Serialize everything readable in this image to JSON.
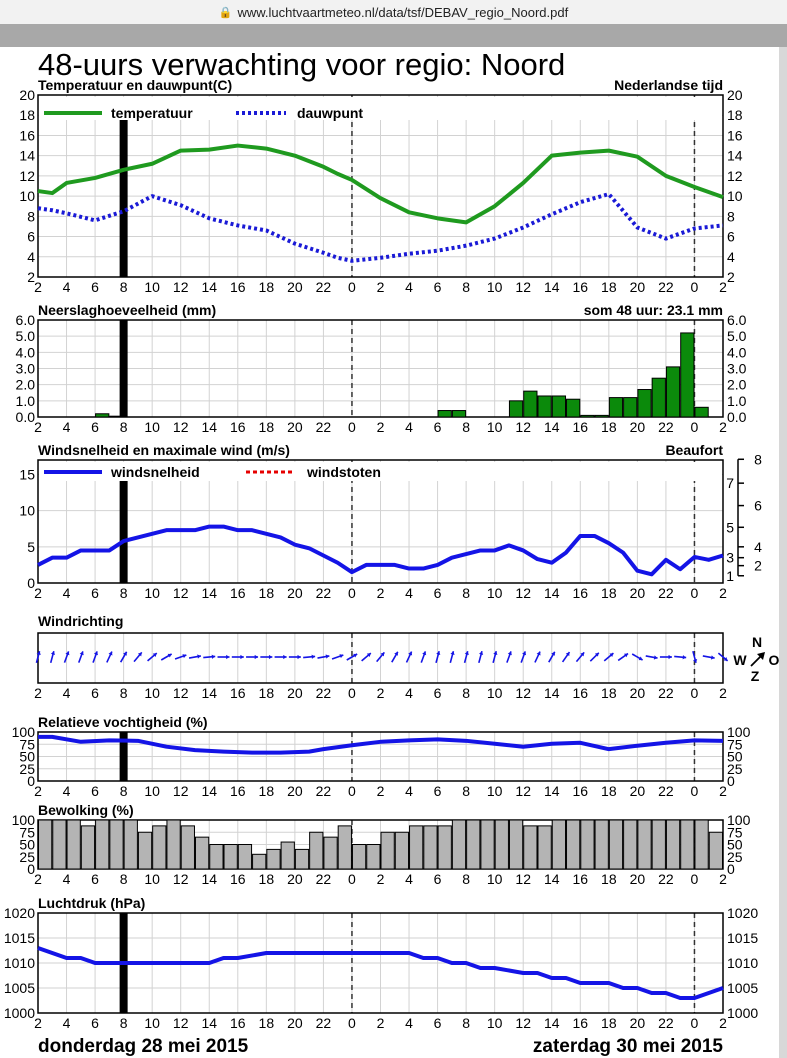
{
  "browser": {
    "url": "www.luchtvaartmeteo.nl/data/tsf/DEBAV_regio_Noord.pdf"
  },
  "header": {
    "title": "48-uurs verwachting voor regio: Noord",
    "footer_left": "donderdag 28 mei 2015",
    "footer_right": "zaterdag 30 mei 2015"
  },
  "x_ticks": [
    "2",
    "4",
    "6",
    "8",
    "10",
    "12",
    "14",
    "16",
    "18",
    "20",
    "22",
    "0",
    "2",
    "4",
    "6",
    "8",
    "10",
    "12",
    "14",
    "16",
    "18",
    "20",
    "22",
    "0",
    "2"
  ],
  "charts": {
    "temperature": {
      "title": "Temperatuur en dauwpunt(C)",
      "title_right": "Nederlandse tijd",
      "legend": [
        "temperatuur",
        "dauwpunt"
      ],
      "y_ticks": [
        "2",
        "4",
        "6",
        "8",
        "10",
        "12",
        "14",
        "16",
        "18",
        "20"
      ]
    },
    "precipitation": {
      "title": "Neerslaghoeveelheid (mm)",
      "title_right": "som 48 uur: 23.1 mm",
      "y_ticks": [
        "0.0",
        "1.0",
        "2.0",
        "3.0",
        "4.0",
        "5.0",
        "6.0"
      ]
    },
    "wind": {
      "title": "Windsnelheid en maximale wind (m/s)",
      "title_right": "Beaufort",
      "legend": [
        "windsnelheid",
        "windstoten"
      ],
      "y_ticks": [
        "0",
        "5",
        "10",
        "15"
      ],
      "beaufort_ticks": [
        "1",
        "2",
        "3",
        "4",
        "5",
        "6",
        "7",
        "8"
      ]
    },
    "wind_direction": {
      "title": "Windrichting",
      "compass": {
        "n": "N",
        "w": "W",
        "o": "O",
        "z": "Z"
      }
    },
    "humidity": {
      "title": "Relatieve vochtigheid (%)",
      "y_ticks": [
        "0",
        "25",
        "50",
        "75",
        "100"
      ]
    },
    "clouds": {
      "title": "Bewolking (%)",
      "y_ticks": [
        "0",
        "25",
        "50",
        "75",
        "100"
      ]
    },
    "pressure": {
      "title": "Luchtdruk (hPa)",
      "y_ticks": [
        "1000",
        "1005",
        "1010",
        "1015",
        "1020"
      ]
    }
  },
  "colors": {
    "temperature": "#1f9a1f",
    "dewpoint": "#1a1ad6",
    "precip_bar": "#0b8a0b",
    "wind": "#1414e6",
    "gusts": "#e60000",
    "cloud_bar": "#b4b4b4",
    "grid": "#d2d2d2"
  },
  "chart_data": [
    {
      "type": "line",
      "title": "Temperatuur en dauwpunt(C)",
      "x_hours_from_start": [
        0,
        1,
        2,
        4,
        6,
        8,
        10,
        12,
        14,
        16,
        18,
        20,
        21,
        22,
        24,
        26,
        28,
        30,
        32,
        34,
        36,
        38,
        40,
        42,
        44,
        46,
        48
      ],
      "ylim": [
        2,
        20
      ],
      "series": [
        {
          "name": "temperatuur",
          "values": [
            10.5,
            10.3,
            11.3,
            11.8,
            12.6,
            13.2,
            14.5,
            14.6,
            15.0,
            14.7,
            14.0,
            12.9,
            12.2,
            11.6,
            9.8,
            8.4,
            7.8,
            7.4,
            9.0,
            11.3,
            14.0,
            14.3,
            14.5,
            13.9,
            12.0,
            10.9,
            9.9
          ]
        },
        {
          "name": "dauwpunt",
          "values": [
            8.8,
            8.6,
            8.3,
            7.6,
            8.5,
            10.0,
            9.1,
            7.8,
            7.1,
            6.6,
            5.3,
            4.4,
            3.9,
            3.6,
            3.9,
            4.3,
            4.6,
            5.1,
            5.8,
            6.9,
            8.2,
            9.4,
            10.2,
            6.9,
            5.8,
            6.8,
            7.1
          ]
        }
      ]
    },
    {
      "type": "bar",
      "title": "Neerslaghoeveelheid (mm)",
      "x_hours_from_start": [
        4,
        5,
        28,
        29,
        33,
        34,
        35,
        36,
        37,
        38,
        39,
        40,
        41,
        42,
        43,
        44,
        45,
        46,
        47
      ],
      "ylim": [
        0,
        6
      ],
      "values": [
        0.2,
        0.05,
        0.4,
        0.4,
        1.0,
        1.6,
        1.3,
        1.3,
        1.1,
        0.1,
        0.1,
        1.2,
        1.2,
        1.7,
        2.4,
        3.1,
        5.2,
        0.6,
        0.0
      ]
    },
    {
      "type": "line",
      "title": "Windsnelheid en maximale wind (m/s)",
      "x_hours_from_start": [
        0,
        1,
        2,
        3,
        4,
        5,
        6,
        7,
        8,
        9,
        10,
        11,
        12,
        13,
        14,
        15,
        16,
        17,
        18,
        19,
        20,
        21,
        22,
        23,
        24,
        25,
        26,
        27,
        28,
        29,
        30,
        31,
        32,
        33,
        34,
        35,
        36,
        37,
        38,
        39,
        40,
        41,
        42,
        43,
        44,
        45,
        46,
        47,
        48
      ],
      "ylim": [
        0,
        17
      ],
      "series": [
        {
          "name": "windsnelheid",
          "values": [
            2.5,
            3.5,
            3.5,
            4.5,
            4.5,
            4.5,
            5.8,
            6.3,
            6.8,
            7.3,
            7.3,
            7.3,
            7.8,
            7.8,
            7.3,
            7.3,
            6.8,
            6.3,
            5.3,
            4.8,
            3.8,
            2.8,
            1.5,
            2.5,
            2.5,
            2.5,
            2.0,
            2.0,
            2.5,
            3.5,
            4.0,
            4.5,
            4.5,
            5.2,
            4.5,
            3.3,
            2.8,
            4.2,
            6.5,
            6.5,
            5.5,
            4.2,
            1.7,
            1.2,
            3.2,
            1.9,
            3.6,
            3.2,
            3.8
          ]
        },
        {
          "name": "windstoten",
          "values": []
        }
      ]
    },
    {
      "type": "scatter",
      "title": "Windrichting",
      "x_hours_from_start": [
        0,
        1,
        2,
        3,
        4,
        5,
        6,
        7,
        8,
        9,
        10,
        11,
        12,
        13,
        14,
        15,
        16,
        17,
        18,
        19,
        20,
        21,
        22,
        23,
        24,
        25,
        26,
        27,
        28,
        29,
        30,
        31,
        32,
        33,
        34,
        35,
        36,
        37,
        38,
        39,
        40,
        41,
        42,
        43,
        44,
        45,
        46,
        47,
        48
      ],
      "direction_deg_towards": [
        15,
        15,
        20,
        20,
        20,
        25,
        30,
        40,
        50,
        60,
        70,
        80,
        85,
        90,
        90,
        90,
        90,
        90,
        90,
        85,
        80,
        70,
        60,
        50,
        40,
        30,
        25,
        20,
        15,
        15,
        15,
        15,
        15,
        20,
        20,
        25,
        30,
        35,
        40,
        45,
        50,
        55,
        120,
        100,
        90,
        95,
        165,
        100,
        130
      ]
    },
    {
      "type": "line",
      "title": "Relatieve vochtigheid (%)",
      "x_hours_from_start": [
        0,
        1,
        3,
        5,
        7,
        9,
        11,
        13,
        15,
        17,
        19,
        20,
        22,
        24,
        26,
        28,
        30,
        32,
        34,
        36,
        38,
        40,
        42,
        44,
        46,
        48
      ],
      "ylim": [
        0,
        100
      ],
      "series": [
        {
          "name": "Relatieve vochtigheid",
          "values": [
            90,
            90,
            80,
            83,
            82,
            70,
            63,
            60,
            58,
            58,
            60,
            65,
            73,
            80,
            83,
            85,
            82,
            76,
            70,
            76,
            78,
            65,
            72,
            78,
            83,
            82
          ]
        }
      ]
    },
    {
      "type": "bar",
      "title": "Bewolking (%)",
      "x_hours_from_start": [
        0,
        1,
        2,
        3,
        4,
        5,
        6,
        7,
        8,
        9,
        10,
        11,
        12,
        13,
        14,
        15,
        16,
        17,
        18,
        19,
        20,
        21,
        22,
        23,
        24,
        25,
        26,
        27,
        28,
        29,
        30,
        31,
        32,
        33,
        34,
        35,
        36,
        37,
        38,
        39,
        40,
        41,
        42,
        43,
        44,
        45,
        46,
        47
      ],
      "ylim": [
        0,
        100
      ],
      "values": [
        100,
        100,
        100,
        88,
        100,
        100,
        100,
        75,
        88,
        100,
        88,
        65,
        50,
        50,
        50,
        30,
        40,
        55,
        40,
        75,
        65,
        88,
        50,
        50,
        75,
        75,
        88,
        88,
        88,
        100,
        100,
        100,
        100,
        100,
        88,
        88,
        100,
        100,
        100,
        100,
        100,
        100,
        100,
        100,
        100,
        100,
        100,
        75
      ]
    },
    {
      "type": "line",
      "title": "Luchtdruk (hPa)",
      "x_hours_from_start": [
        0,
        2,
        3,
        4,
        5,
        6,
        12,
        13,
        14,
        16,
        17,
        20,
        24,
        26,
        27,
        28,
        29,
        30,
        31,
        32,
        34,
        35,
        36,
        37,
        38,
        40,
        41,
        42,
        43,
        44,
        45,
        46,
        47,
        48
      ],
      "ylim": [
        1000,
        1020
      ],
      "series": [
        {
          "name": "Luchtdruk",
          "values": [
            1013,
            1011,
            1011,
            1010,
            1010,
            1010,
            1010,
            1011,
            1011,
            1012,
            1012,
            1012,
            1012,
            1012,
            1011,
            1011,
            1010,
            1010,
            1009,
            1009,
            1008,
            1008,
            1007,
            1007,
            1006,
            1006,
            1005,
            1005,
            1004,
            1004,
            1003,
            1003,
            1004,
            1005
          ]
        }
      ]
    }
  ]
}
